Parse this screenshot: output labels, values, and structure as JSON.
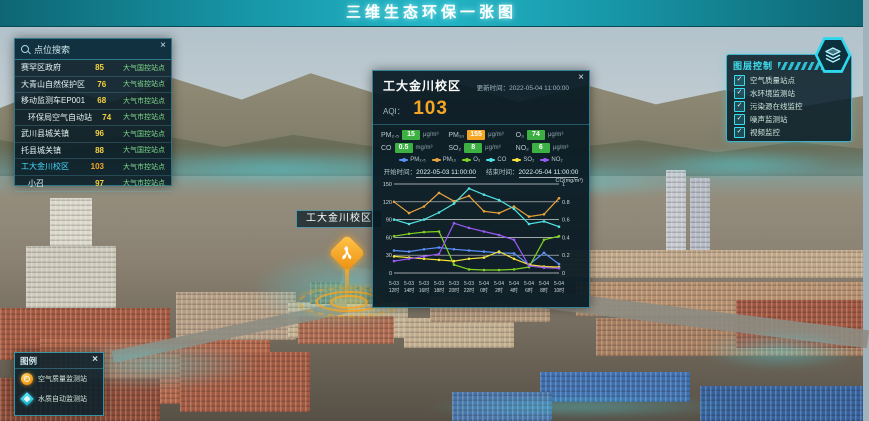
{
  "ui": {
    "close_glyph": "×",
    "check_glyph": "✓"
  },
  "header": {
    "title": "三维生态环保一张图"
  },
  "station_panel": {
    "title": "点位搜索",
    "items": [
      {
        "name": "赛罕区政府",
        "value": "85",
        "value_color": "#f5d33d",
        "type": "大气国控站点",
        "selected": false
      },
      {
        "name": "大青山自然保护区",
        "value": "76",
        "value_color": "#f5d33d",
        "type": "大气省控站点",
        "selected": false
      },
      {
        "name": "移动监测车EP001",
        "value": "68",
        "value_color": "#f5d33d",
        "type": "大气市控站点",
        "selected": false
      },
      {
        "name": "环保局空气自动站",
        "value": "74",
        "value_color": "#f5d33d",
        "type": "大气市控站点",
        "selected": false
      },
      {
        "name": "武川县城关镇",
        "value": "96",
        "value_color": "#f5d33d",
        "type": "大气国控站点",
        "selected": false
      },
      {
        "name": "托县城关镇",
        "value": "88",
        "value_color": "#f5d33d",
        "type": "大气国控站点",
        "selected": false
      },
      {
        "name": "工大金川校区",
        "value": "103",
        "value_color": "#f5a623",
        "type": "大气市控站点",
        "selected": true
      },
      {
        "name": "小召",
        "value": "97",
        "value_color": "#f5d33d",
        "type": "大气市控站点",
        "selected": false
      }
    ]
  },
  "popup": {
    "title": "工大金川校区",
    "update_label": "更新时间：",
    "update_time": "2022-05-04 11:00:00",
    "aqi_label": "AQI：",
    "aqi_value": "103",
    "pollutants": [
      {
        "label": "PM₂.₅",
        "value": "15",
        "unit": "μg/m³",
        "color": "#3cb043"
      },
      {
        "label": "PM₁₀",
        "value": "155",
        "unit": "μg/m³",
        "color": "#f5a623"
      },
      {
        "label": "O₃",
        "value": "74",
        "unit": "μg/m³",
        "color": "#3cb043"
      },
      {
        "label": "CO",
        "value": "0.5",
        "unit": "mg/m³",
        "color": "#3cb043"
      },
      {
        "label": "SO₂",
        "value": "8",
        "unit": "μg/m³",
        "color": "#3cb043"
      },
      {
        "label": "NO₂",
        "value": "6",
        "unit": "μg/m³",
        "color": "#3cb043"
      }
    ],
    "start_label": "开始时间：",
    "start_time": "2022-05-03 11:00:00",
    "end_label": "结束时间：",
    "end_time": "2022-05-04 11:00:00"
  },
  "chart_data": {
    "type": "line",
    "title": "",
    "categories": [
      "5-03 12时",
      "5-03 14时",
      "5-03 16时",
      "5-03 18时",
      "5-03 20时",
      "5-03 22时",
      "5-04 0时",
      "5-04 2时",
      "5-04 4时",
      "5-04 6时",
      "5-04 8时",
      "5-04 10时"
    ],
    "ylim_left": [
      0,
      150
    ],
    "yticks_left": [
      0,
      30,
      60,
      90,
      120,
      150
    ],
    "ylim_right": [
      0,
      1
    ],
    "yticks_right": [
      0,
      0.2,
      0.4,
      0.6,
      0.8,
      1
    ],
    "right_axis_label": "CO(mg/m³)",
    "grid": true,
    "legend_position": "top",
    "series": [
      {
        "name": "PM₂.₅",
        "color": "#5b8ff9",
        "axis": "left",
        "values": [
          38,
          36,
          40,
          43,
          40,
          38,
          36,
          34,
          33,
          14,
          34,
          15
        ]
      },
      {
        "name": "PM₁₀",
        "color": "#e8a33d",
        "axis": "left",
        "values": [
          120,
          101,
          112,
          135,
          121,
          130,
          104,
          101,
          112,
          95,
          99,
          126
        ]
      },
      {
        "name": "O₃",
        "color": "#7ed321",
        "axis": "left",
        "values": [
          62,
          66,
          69,
          70,
          14,
          6,
          5,
          5,
          6,
          10,
          56,
          62
        ]
      },
      {
        "name": "CO",
        "color": "#50e3e3",
        "axis": "right",
        "values": [
          0.6,
          0.55,
          0.6,
          0.68,
          0.78,
          0.95,
          0.88,
          0.82,
          0.72,
          0.55,
          0.58,
          0.52
        ]
      },
      {
        "name": "SO₂",
        "color": "#f3e13a",
        "axis": "left",
        "values": [
          28,
          26,
          24,
          22,
          20,
          24,
          26,
          36,
          24,
          14,
          11,
          10
        ]
      },
      {
        "name": "NO₂",
        "color": "#9b59f5",
        "axis": "left",
        "values": [
          20,
          24,
          28,
          32,
          84,
          76,
          70,
          64,
          56,
          12,
          9,
          8
        ]
      }
    ]
  },
  "layer_panel": {
    "title": "图层控制",
    "items": [
      {
        "label": "空气质量站点",
        "checked": true
      },
      {
        "label": "水环境监测站",
        "checked": true
      },
      {
        "label": "污染源在线监控",
        "checked": true
      },
      {
        "label": "噪声监测站",
        "checked": true
      },
      {
        "label": "视频监控",
        "checked": true
      }
    ]
  },
  "legend_panel": {
    "title": "图例",
    "items": [
      {
        "label": "空气质量监测站",
        "icon": "air"
      },
      {
        "label": "水质自动监测站",
        "icon": "water"
      }
    ]
  },
  "map_label": {
    "text": "工大金川校区"
  }
}
